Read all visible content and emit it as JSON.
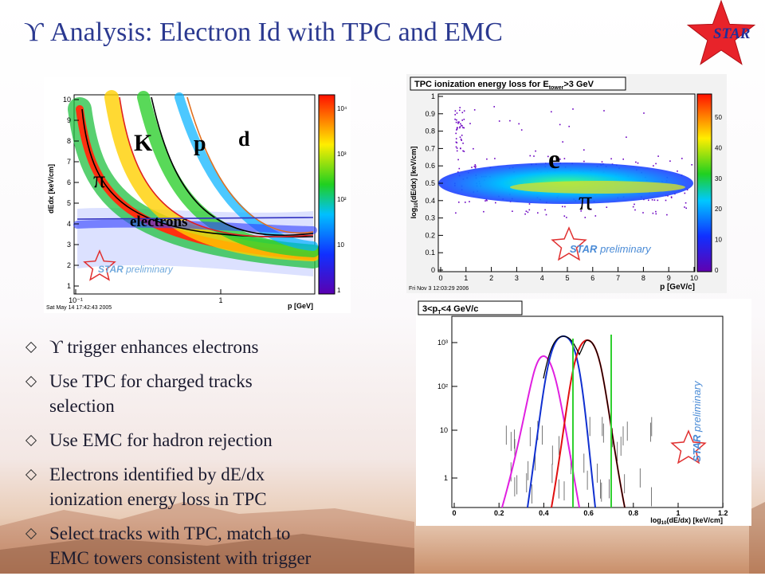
{
  "header": {
    "title": "ϒ Analysis: Electron Id with TPC and EMC",
    "logo": "STAR"
  },
  "bullets": [
    [
      "ϒ trigger enhances electrons"
    ],
    [
      "Use TPC for charged tracks",
      "selection"
    ],
    [
      "Use EMC for hadron rejection"
    ],
    [
      "Electrons identified by dE/dx",
      "ionization energy loss in TPC"
    ],
    [
      "Select tracks with TPC, match to",
      "EMC towers consistent with trigger"
    ]
  ],
  "plot_left": {
    "y_label": "dEdx [keV/cm]",
    "x_label": "p [GeV]",
    "yticks": [
      "1",
      "2",
      "3",
      "4",
      "5",
      "6",
      "7",
      "8",
      "9",
      "10"
    ],
    "xticks": [
      "10⁻¹",
      "1"
    ],
    "zticks": [
      "1",
      "10",
      "10²",
      "10³",
      "10⁴"
    ],
    "labels": [
      "K",
      "p",
      "d",
      "π",
      "electrons"
    ],
    "watermark": [
      "STAR",
      "preliminary"
    ],
    "timestamp": "Sat May 14 17:42:43 2005"
  },
  "plot_right_top": {
    "title": [
      "TPC ionization energy loss for E",
      "tower",
      ">3 GeV"
    ],
    "y_label": [
      "log",
      "10",
      "(dE/dx) [keV/cm]"
    ],
    "x_label": "p [GeV/c]",
    "yticks": [
      "0",
      "0.1",
      "0.2",
      "0.3",
      "0.4",
      "0.5",
      "0.6",
      "0.7",
      "0.8",
      "0.9",
      "1"
    ],
    "xticks": [
      "0",
      "1",
      "2",
      "3",
      "4",
      "5",
      "6",
      "7",
      "8",
      "9",
      "10"
    ],
    "zticks": [
      "0",
      "10",
      "20",
      "30",
      "40",
      "50"
    ],
    "labels": [
      "e",
      "π"
    ],
    "watermark": [
      "STAR",
      "preliminary"
    ],
    "timestamp": "Fri Nov  3 12:03:29 2006"
  },
  "plot_right_bottom": {
    "title": [
      "3<p",
      "T",
      "<4 GeV/c"
    ],
    "x_label": [
      "log",
      "10",
      "(dE/dx) [keV/cm]"
    ],
    "yticks": [
      "1",
      "10",
      "10²",
      "10³"
    ],
    "xticks": [
      "0",
      "0.2",
      "0.4",
      "0.6",
      "0.8",
      "1",
      "1.2"
    ],
    "watermark": [
      "STAR",
      "preliminary"
    ]
  }
}
